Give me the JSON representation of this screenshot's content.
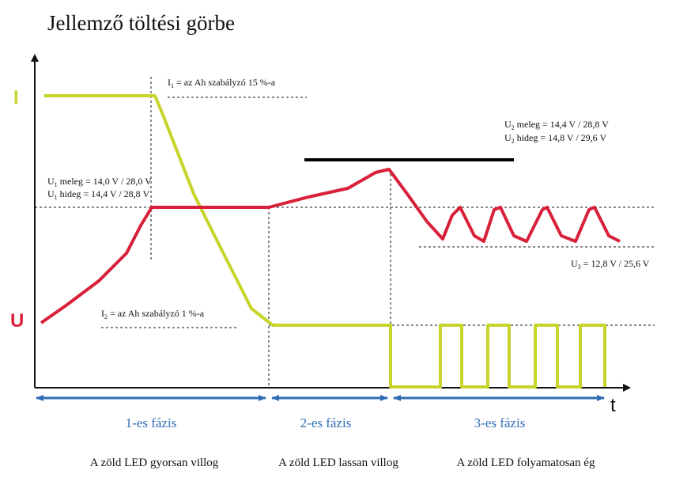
{
  "title": "Jellemző töltési görbe",
  "axes": {
    "y_current_label": "I",
    "y_voltage_label": "U",
    "x_label": "t"
  },
  "annotations": {
    "i1": {
      "prefix": "I",
      "sub": "1",
      "text": " = az Ah szabályzó 15 %-a"
    },
    "i2": {
      "prefix": "I",
      "sub": "2",
      "text": " = az Ah szabályzó 1 %-a"
    },
    "u1_meleg": {
      "prefix": "U",
      "sub": "1",
      "text": " meleg = 14,0 V / 28,0 V"
    },
    "u1_hideg": {
      "prefix": "U",
      "sub": "1",
      "text": " hideg = 14,4 V /  28,8 V"
    },
    "u2_meleg": {
      "prefix": "U",
      "sub": "2",
      "text": " meleg = 14,4 V / 28,8 V"
    },
    "u2_hideg": {
      "prefix": "U",
      "sub": "2",
      "text": " hideg = 14,8 V / 29,6 V"
    },
    "u3": {
      "prefix": "U",
      "sub": "3",
      "text": "  = 12,8 V / 25,6 V"
    }
  },
  "phases": [
    {
      "label": "1-es fázis",
      "led": "A zöld LED gyorsan villog"
    },
    {
      "label": "2-es fázis",
      "led": "A zöld LED lassan villog"
    },
    {
      "label": "3-es fázis",
      "led": "A zöld LED folyamatosan ég"
    }
  ],
  "colors": {
    "current_curve": "#c8d42a",
    "voltage_curve": "#d8203a",
    "phase_arrow": "#2e6db4",
    "phase_text": "#2e6db4",
    "axis": "#111111",
    "u2_bar": "#000000"
  }
}
